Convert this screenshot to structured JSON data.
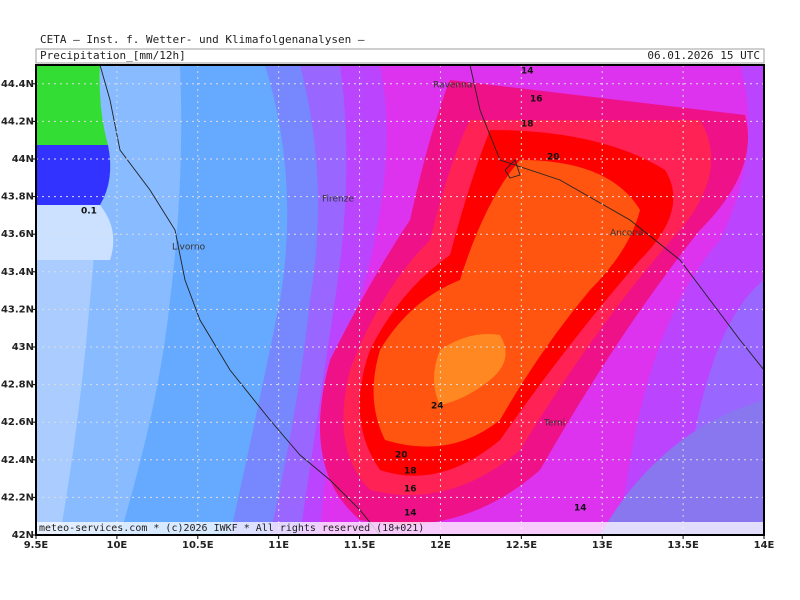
{
  "header": {
    "institute": "CETA — Inst. f. Wetter- und Klimafolgenanalysen —",
    "product": "Precipitation_[mm/12h]",
    "valid_time": "06.01.2026 15 UTC"
  },
  "axes": {
    "longitude": [
      "9.5E",
      "10E",
      "10.5E",
      "11E",
      "11.5E",
      "12E",
      "12.5E",
      "13E",
      "13.5E",
      "14E"
    ],
    "latitude": [
      "42N",
      "42.2N",
      "42.4N",
      "42.6N",
      "42.8N",
      "43N",
      "43.2N",
      "43.4N",
      "43.6N",
      "43.8N",
      "44N",
      "44.2N",
      "44.4N"
    ]
  },
  "places": [
    "Ravenna",
    "Firenze",
    "Livorno",
    "Ancona",
    "Terni"
  ],
  "contour_labels": [
    "14",
    "16",
    "18",
    "20",
    "24",
    "20",
    "18",
    "16",
    "14",
    "14",
    "0.1"
  ],
  "footer": "meteo-services.com * (c)2026 IWKF * All rights reserved (18+021)"
}
